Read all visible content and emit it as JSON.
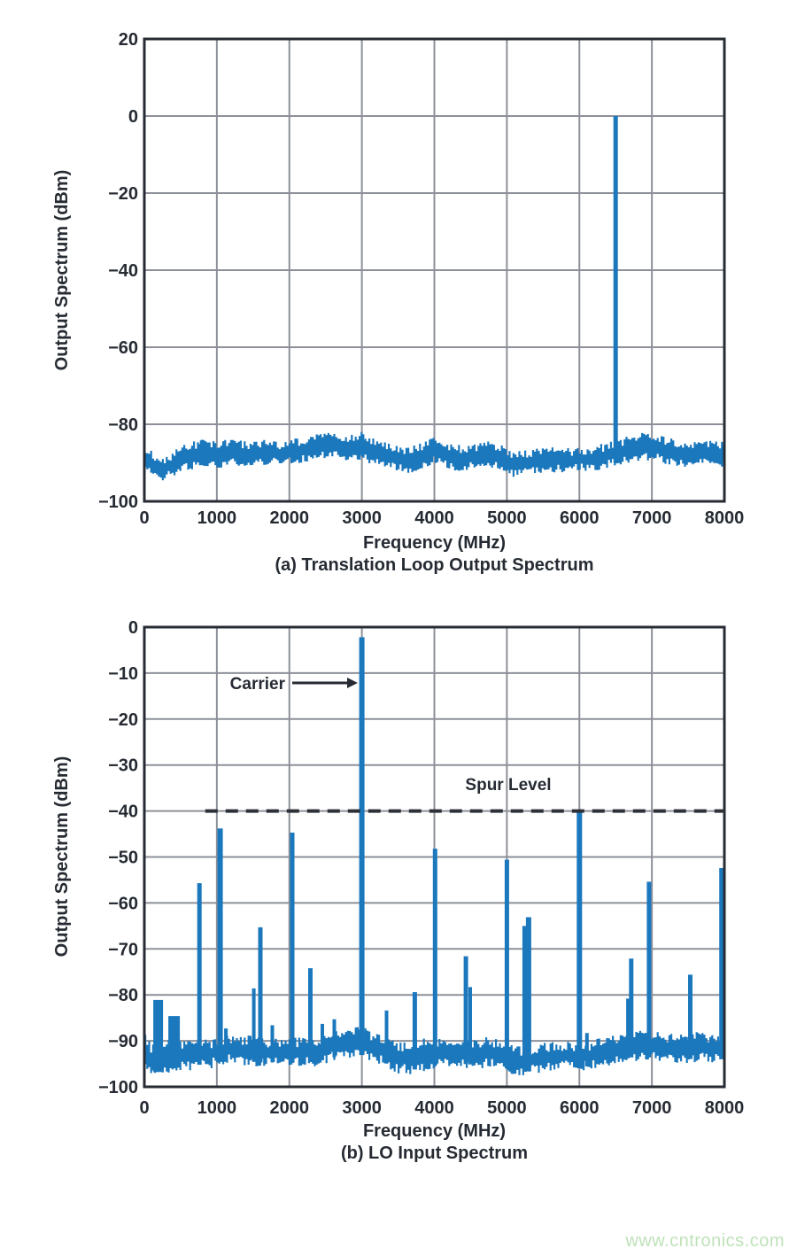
{
  "page": {
    "background": "#ffffff",
    "watermark": {
      "text": "www.cntronics.com",
      "color": "#bfe2ba"
    }
  },
  "colors": {
    "trace": "#1b78bd",
    "grid": "#8d9099",
    "axis": "#272b33",
    "text": "#262b33",
    "dashed_line": "#2c3037"
  },
  "chart_data": [
    {
      "id": "a",
      "type": "area",
      "caption": "(a) Translation Loop Output Spectrum",
      "xlabel": "Frequency (MHz)",
      "ylabel": "Output Spectrum (dBm)",
      "xlim": [
        0,
        8000
      ],
      "ylim": [
        -100,
        20
      ],
      "grid": true,
      "xticks": [
        0,
        1000,
        2000,
        3000,
        4000,
        5000,
        6000,
        7000,
        8000
      ],
      "xtick_labels": [
        "0",
        "1000",
        "2000",
        "3000",
        "4000",
        "5000",
        "6000",
        "7000",
        "8000"
      ],
      "yticks": [
        20,
        0,
        -20,
        -40,
        -60,
        -80,
        -100
      ],
      "ytick_labels": [
        "20",
        "0",
        "−20",
        "−40",
        "−60",
        "−80",
        "−100"
      ],
      "main_peak": {
        "freq_mhz": 6500,
        "level_dbm": 0.0
      },
      "spurs": [
        [
          6500,
          0.0,
          5
        ],
        [
          790,
          -84.2,
          4
        ],
        [
          2520,
          -82.8,
          4
        ],
        [
          3010,
          -82.6,
          4
        ],
        [
          3960,
          -83.8,
          4
        ]
      ],
      "noise_band": [
        [
          0,
          -86.5,
          -91.5
        ],
        [
          150,
          -88.5,
          -93.0
        ],
        [
          250,
          -89.5,
          -93.5
        ],
        [
          400,
          -88.0,
          -92.5
        ],
        [
          550,
          -86.0,
          -91.0
        ],
        [
          700,
          -85.5,
          -90.5
        ],
        [
          800,
          -84.7,
          -90.0
        ],
        [
          950,
          -85.5,
          -90.5
        ],
        [
          1100,
          -85.0,
          -90.0
        ],
        [
          1250,
          -84.5,
          -89.5
        ],
        [
          1400,
          -85.5,
          -90.0
        ],
        [
          1550,
          -85.0,
          -89.5
        ],
        [
          1700,
          -85.0,
          -89.5
        ],
        [
          1850,
          -85.5,
          -90.0
        ],
        [
          2000,
          -85.0,
          -89.5
        ],
        [
          2150,
          -84.5,
          -89.0
        ],
        [
          2300,
          -84.0,
          -89.0
        ],
        [
          2450,
          -83.2,
          -88.2
        ],
        [
          2600,
          -83.0,
          -88.0
        ],
        [
          2750,
          -83.5,
          -88.3
        ],
        [
          2900,
          -83.5,
          -88.5
        ],
        [
          3000,
          -82.9,
          -88.0
        ],
        [
          3100,
          -84.0,
          -89.0
        ],
        [
          3250,
          -85.0,
          -90.0
        ],
        [
          3400,
          -86.0,
          -90.8
        ],
        [
          3550,
          -87.0,
          -91.5
        ],
        [
          3700,
          -86.8,
          -91.5
        ],
        [
          3850,
          -85.5,
          -90.5
        ],
        [
          4000,
          -84.1,
          -89.3
        ],
        [
          4150,
          -85.5,
          -90.3
        ],
        [
          4300,
          -86.3,
          -91.0
        ],
        [
          4450,
          -86.5,
          -91.0
        ],
        [
          4600,
          -85.8,
          -90.5
        ],
        [
          4750,
          -85.5,
          -90.5
        ],
        [
          4900,
          -85.8,
          -91.0
        ],
        [
          5050,
          -87.5,
          -92.5
        ],
        [
          5150,
          -88.0,
          -93.0
        ],
        [
          5300,
          -87.5,
          -92.0
        ],
        [
          5450,
          -87.3,
          -91.8
        ],
        [
          5600,
          -87.0,
          -91.5
        ],
        [
          5750,
          -87.0,
          -91.5
        ],
        [
          5900,
          -87.2,
          -91.5
        ],
        [
          6050,
          -87.0,
          -91.3
        ],
        [
          6200,
          -86.5,
          -91.0
        ],
        [
          6350,
          -86.0,
          -90.5
        ],
        [
          6450,
          -85.5,
          -90.0
        ],
        [
          6550,
          -84.8,
          -89.5
        ],
        [
          6700,
          -83.8,
          -88.8
        ],
        [
          6850,
          -83.3,
          -88.3
        ],
        [
          7000,
          -83.5,
          -88.5
        ],
        [
          7150,
          -84.0,
          -89.0
        ],
        [
          7300,
          -85.0,
          -89.8
        ],
        [
          7450,
          -85.5,
          -90.3
        ],
        [
          7600,
          -85.3,
          -90.3
        ],
        [
          7750,
          -84.8,
          -89.8
        ],
        [
          7900,
          -85.3,
          -90.3
        ],
        [
          8000,
          -85.5,
          -90.5
        ]
      ]
    },
    {
      "id": "b",
      "type": "area",
      "caption": "(b) LO Input Spectrum",
      "xlabel": "Frequency (MHz)",
      "ylabel": "Output Spectrum (dBm)",
      "xlim": [
        0,
        8000
      ],
      "ylim": [
        -100,
        0
      ],
      "grid": true,
      "xticks": [
        0,
        1000,
        2000,
        3000,
        4000,
        5000,
        6000,
        7000,
        8000
      ],
      "xtick_labels": [
        "0",
        "1000",
        "2000",
        "3000",
        "4000",
        "5000",
        "6000",
        "7000",
        "8000"
      ],
      "yticks": [
        0,
        -10,
        -20,
        -30,
        -40,
        -50,
        -60,
        -70,
        -80,
        -90,
        -100
      ],
      "ytick_labels": [
        "0",
        "−10",
        "−20",
        "−30",
        "−40",
        "−50",
        "−60",
        "−70",
        "−80",
        "−90",
        "−100"
      ],
      "carrier": {
        "label": "Carrier",
        "freq_mhz": 3000,
        "level_dbm": -2.2
      },
      "spur_level": {
        "label": "Spur Level",
        "level_dbm": -40,
        "from_mhz": 840,
        "to_mhz": 7980
      },
      "spurs": [
        [
          190,
          -81.1,
          11
        ],
        [
          410,
          -84.6,
          13
        ],
        [
          760,
          -55.7,
          5
        ],
        [
          1045,
          -43.8,
          6
        ],
        [
          1125,
          -87.3,
          4
        ],
        [
          1510,
          -78.6,
          4
        ],
        [
          1600,
          -65.3,
          5
        ],
        [
          1765,
          -86.6,
          4
        ],
        [
          2040,
          -44.7,
          5
        ],
        [
          2290,
          -74.2,
          5
        ],
        [
          2455,
          -86.3,
          4
        ],
        [
          2620,
          -85.3,
          4
        ],
        [
          3000,
          -2.2,
          6
        ],
        [
          3340,
          -83.4,
          4
        ],
        [
          3730,
          -79.4,
          5
        ],
        [
          4010,
          -48.2,
          5
        ],
        [
          4435,
          -71.6,
          5
        ],
        [
          4495,
          -78.3,
          4
        ],
        [
          5000,
          -50.6,
          5
        ],
        [
          5245,
          -65.0,
          5
        ],
        [
          5300,
          -63.1,
          6
        ],
        [
          6000,
          -40.1,
          6
        ],
        [
          6105,
          -88.3,
          4
        ],
        [
          6670,
          -80.8,
          4
        ],
        [
          6715,
          -72.1,
          5
        ],
        [
          6960,
          -55.4,
          5
        ],
        [
          7530,
          -75.6,
          5
        ],
        [
          7960,
          -52.4,
          5
        ]
      ],
      "noise_band": [
        [
          0,
          -89.0,
          -95.0
        ],
        [
          100,
          -92.0,
          -97.5
        ],
        [
          200,
          -91.0,
          -96.5
        ],
        [
          300,
          -91.0,
          -96.0
        ],
        [
          450,
          -90.5,
          -95.5
        ],
        [
          600,
          -91.0,
          -95.5
        ],
        [
          750,
          -90.5,
          -95.0
        ],
        [
          900,
          -90.8,
          -95.0
        ],
        [
          1000,
          -90.0,
          -94.5
        ],
        [
          1150,
          -89.5,
          -94.0
        ],
        [
          1300,
          -90.3,
          -94.5
        ],
        [
          1450,
          -89.8,
          -94.3
        ],
        [
          1600,
          -90.3,
          -94.5
        ],
        [
          1750,
          -90.5,
          -94.5
        ],
        [
          1900,
          -90.3,
          -94.3
        ],
        [
          2050,
          -90.5,
          -94.5
        ],
        [
          2200,
          -90.0,
          -94.3
        ],
        [
          2350,
          -90.3,
          -94.5
        ],
        [
          2500,
          -89.3,
          -93.8
        ],
        [
          2650,
          -88.8,
          -93.3
        ],
        [
          2800,
          -88.5,
          -93.0
        ],
        [
          2950,
          -88.0,
          -92.8
        ],
        [
          3050,
          -88.3,
          -93.0
        ],
        [
          3200,
          -89.5,
          -93.8
        ],
        [
          3350,
          -90.3,
          -94.8
        ],
        [
          3500,
          -91.3,
          -96.0
        ],
        [
          3650,
          -91.5,
          -96.3
        ],
        [
          3800,
          -90.8,
          -95.8
        ],
        [
          3950,
          -90.3,
          -95.0
        ],
        [
          4100,
          -90.3,
          -95.0
        ],
        [
          4250,
          -90.0,
          -94.8
        ],
        [
          4400,
          -90.3,
          -94.8
        ],
        [
          4550,
          -90.5,
          -95.0
        ],
        [
          4700,
          -90.3,
          -94.8
        ],
        [
          4850,
          -90.5,
          -95.0
        ],
        [
          5000,
          -91.0,
          -95.8
        ],
        [
          5100,
          -92.3,
          -97.0
        ],
        [
          5250,
          -92.0,
          -96.5
        ],
        [
          5400,
          -91.8,
          -96.3
        ],
        [
          5550,
          -91.5,
          -95.8
        ],
        [
          5700,
          -91.3,
          -95.5
        ],
        [
          5850,
          -91.0,
          -95.3
        ],
        [
          6000,
          -91.3,
          -95.5
        ],
        [
          6150,
          -91.0,
          -95.3
        ],
        [
          6300,
          -90.5,
          -95.0
        ],
        [
          6450,
          -89.8,
          -94.3
        ],
        [
          6600,
          -89.0,
          -93.8
        ],
        [
          6750,
          -88.8,
          -93.3
        ],
        [
          6900,
          -89.0,
          -93.5
        ],
        [
          7050,
          -88.8,
          -93.3
        ],
        [
          7200,
          -89.3,
          -93.8
        ],
        [
          7350,
          -89.5,
          -94.0
        ],
        [
          7500,
          -89.3,
          -93.8
        ],
        [
          7650,
          -89.0,
          -93.5
        ],
        [
          7800,
          -89.5,
          -94.0
        ],
        [
          7950,
          -89.3,
          -93.8
        ],
        [
          8000,
          -89.3,
          -93.8
        ]
      ]
    }
  ]
}
